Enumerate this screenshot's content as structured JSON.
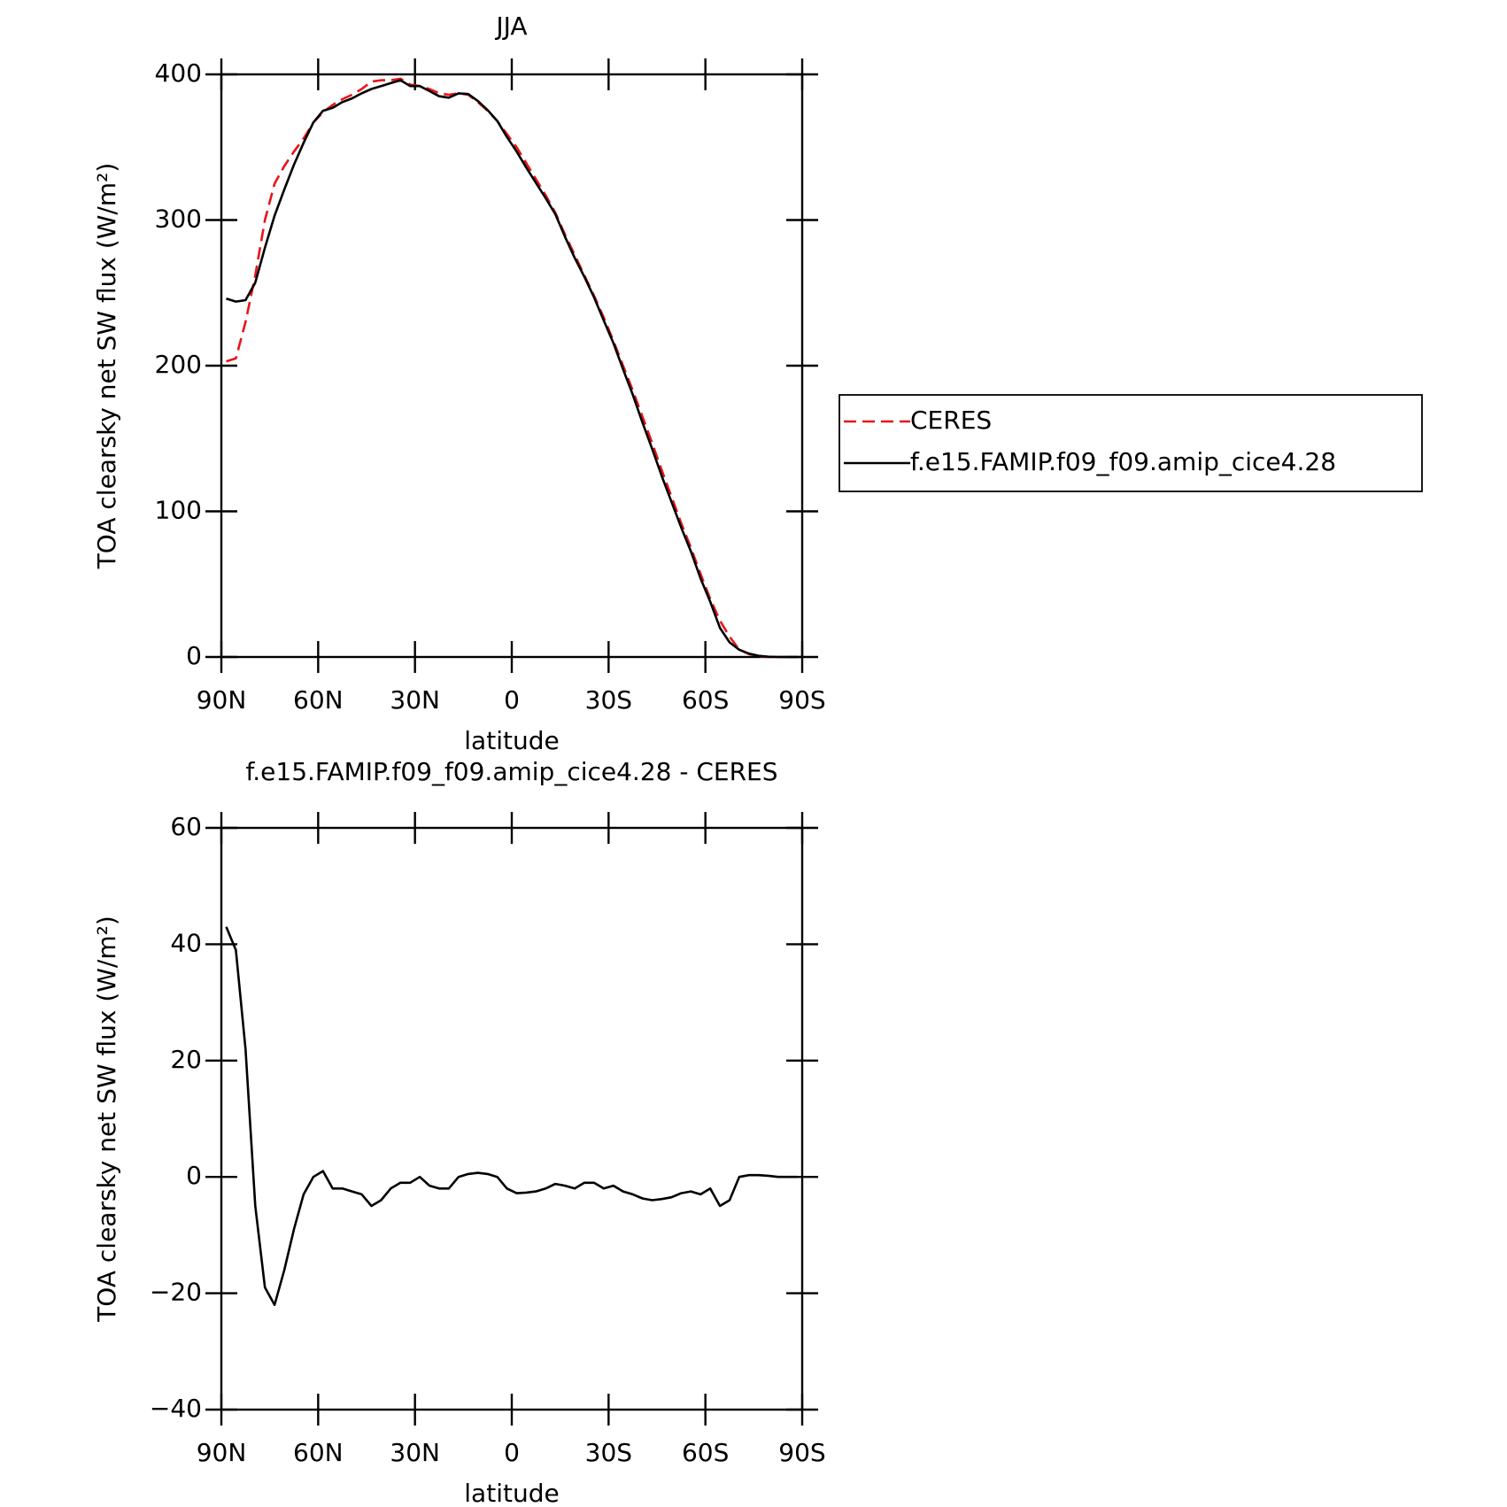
{
  "chart_data": [
    {
      "type": "line",
      "title": "JJA",
      "xlabel": "latitude",
      "ylabel": "TOA clearsky net SW flux (W/m²)",
      "x": [
        88.5,
        85.5,
        82.5,
        79.5,
        76.5,
        73.5,
        70.5,
        67.5,
        64.5,
        61.5,
        58.5,
        55.5,
        52.5,
        49.5,
        46.5,
        43.5,
        40.5,
        37.5,
        34.5,
        31.5,
        28.5,
        25.5,
        22.5,
        19.5,
        16.5,
        13.5,
        10.5,
        7.5,
        4.5,
        1.5,
        -1.5,
        -4.5,
        -7.5,
        -10.5,
        -13.5,
        -16.5,
        -19.5,
        -22.5,
        -25.5,
        -28.5,
        -31.5,
        -34.5,
        -37.5,
        -40.5,
        -43.5,
        -46.5,
        -49.5,
        -52.5,
        -55.5,
        -58.5,
        -61.5,
        -64.5,
        -67.5,
        -70.5,
        -73.5,
        -76.5,
        -79.5,
        -82.5,
        -85.5,
        -88.5
      ],
      "series": [
        {
          "name": "CERES",
          "color": "#e8141a",
          "line_style": "dashed",
          "values": [
            203,
            205,
            230,
            262,
            300,
            325,
            337,
            347,
            356,
            367,
            374,
            379,
            383,
            386,
            390,
            395,
            396,
            396,
            397,
            393,
            392,
            390,
            387,
            386,
            387,
            386,
            381,
            375,
            368,
            359,
            350,
            339,
            328,
            317,
            305,
            290,
            276,
            262,
            248,
            233,
            217,
            200,
            183,
            165,
            147,
            128,
            110,
            92,
            75,
            57,
            40,
            25,
            14,
            5,
            2,
            0.5,
            0,
            0,
            0,
            0
          ]
        },
        {
          "name": "f.e15.FAMIP.f09_f09.amip_cice4.28",
          "color": "#000000",
          "line_style": "solid",
          "values": [
            246,
            244,
            245,
            257,
            281,
            303,
            321,
            338,
            353,
            367,
            375,
            377,
            381,
            383.5,
            387,
            390,
            392,
            394,
            396,
            392,
            392,
            388.5,
            385,
            384,
            387,
            386.5,
            381.7,
            375.5,
            368,
            357,
            347,
            336,
            325.5,
            315,
            304,
            288.5,
            274,
            261,
            247,
            231,
            215.5,
            197.5,
            180,
            161,
            143,
            124,
            106.5,
            89,
            72.5,
            54,
            38,
            20,
            10,
            5,
            2.3,
            0.8,
            0.2,
            0,
            0,
            0
          ]
        }
      ],
      "xlim": [
        90,
        -90
      ],
      "xticks": [
        {
          "value": 90,
          "label": "90N"
        },
        {
          "value": 60,
          "label": "60N"
        },
        {
          "value": 30,
          "label": "30N"
        },
        0,
        {
          "value": -30,
          "label": "30S"
        },
        {
          "value": -60,
          "label": "60S"
        },
        {
          "value": -90,
          "label": "90S"
        }
      ],
      "ylim": [
        0,
        400
      ],
      "yticks": [
        0,
        100,
        200,
        300,
        400
      ],
      "legend": "right"
    },
    {
      "type": "line",
      "title": "f.e15.FAMIP.f09_f09.amip_cice4.28 - CERES",
      "xlabel": "latitude",
      "ylabel": "TOA clearsky net SW flux (W/m²)",
      "x": [
        88.5,
        85.5,
        82.5,
        79.5,
        76.5,
        73.5,
        70.5,
        67.5,
        64.5,
        61.5,
        58.5,
        55.5,
        52.5,
        49.5,
        46.5,
        43.5,
        40.5,
        37.5,
        34.5,
        31.5,
        28.5,
        25.5,
        22.5,
        19.5,
        16.5,
        13.5,
        10.5,
        7.5,
        4.5,
        1.5,
        -1.5,
        -4.5,
        -7.5,
        -10.5,
        -13.5,
        -16.5,
        -19.5,
        -22.5,
        -25.5,
        -28.5,
        -31.5,
        -34.5,
        -37.5,
        -40.5,
        -43.5,
        -46.5,
        -49.5,
        -52.5,
        -55.5,
        -58.5,
        -61.5,
        -64.5,
        -67.5,
        -70.5,
        -73.5,
        -76.5,
        -79.5,
        -82.5,
        -85.5,
        -88.5
      ],
      "color": "#000000",
      "values": [
        43,
        39,
        22,
        -5,
        -19,
        -22,
        -16,
        -9,
        -3,
        0,
        1,
        -2,
        -2,
        -2.5,
        -3,
        -5,
        -4,
        -2,
        -1,
        -1,
        0,
        -1.5,
        -2,
        -2,
        0,
        0.5,
        0.7,
        0.5,
        0,
        -2,
        -2.8,
        -2.7,
        -2.5,
        -2,
        -1.2,
        -1.5,
        -2,
        -1,
        -1,
        -2,
        -1.5,
        -2.5,
        -3,
        -3.7,
        -4,
        -3.8,
        -3.5,
        -2.8,
        -2.5,
        -3,
        -2,
        -5,
        -4,
        0,
        0.3,
        0.3,
        0.2,
        0,
        0,
        0
      ],
      "xlim": [
        90,
        -90
      ],
      "xticks": [
        {
          "value": 90,
          "label": "90N"
        },
        {
          "value": 60,
          "label": "60N"
        },
        {
          "value": 30,
          "label": "30N"
        },
        0,
        {
          "value": -30,
          "label": "30S"
        },
        {
          "value": -60,
          "label": "60S"
        },
        {
          "value": -90,
          "label": "90S"
        }
      ],
      "ylim": [
        -40,
        60
      ],
      "yticks": [
        {
          "value": -40,
          "label": "−40"
        },
        {
          "value": -20,
          "label": "−20"
        },
        0,
        20,
        40,
        60
      ]
    }
  ]
}
